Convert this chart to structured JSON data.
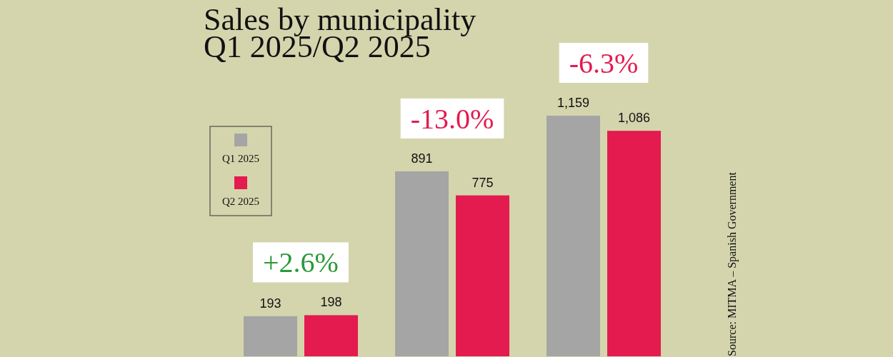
{
  "chart_data": {
    "type": "bar",
    "title": "Sales by municipality",
    "subtitle": "Q1 2025/Q2 2025",
    "categories": [
      null,
      null,
      null
    ],
    "series": [
      {
        "name": "Q1 2025",
        "color": "#a5a5a5",
        "values": [
          193,
          891,
          1159
        ],
        "value_labels": [
          "193",
          "891",
          "1,159"
        ]
      },
      {
        "name": "Q2 2025",
        "color": "#e31b4e",
        "values": [
          198,
          775,
          1086
        ],
        "value_labels": [
          "198",
          "775",
          "1,086"
        ]
      }
    ],
    "legend": "left",
    "annotations": [
      "+2.6%",
      "-13.0%",
      "-6.3%",
      "Source: MITMA – Spanish Government"
    ]
  }
}
